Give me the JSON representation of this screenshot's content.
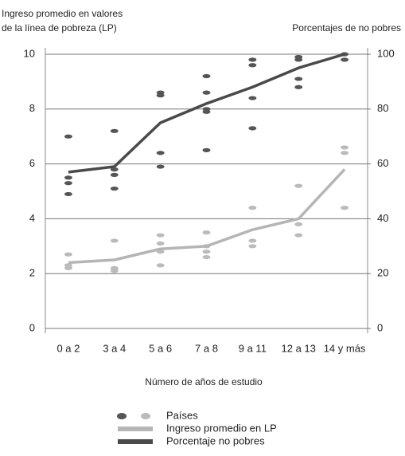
{
  "chart_data": {
    "type": "line",
    "ylabel": [
      "Ingreso promedio en valores",
      "de la línea de pobreza (LP)"
    ],
    "y2label": "Porcentajes de no pobres",
    "xlabel": "Número de años de estudio",
    "categories": [
      "0 a 2",
      "3 a 4",
      "5 a 6",
      "7 a 8",
      "9 a 11",
      "12 a 13",
      "14 y más"
    ],
    "ylim": [
      0,
      10
    ],
    "yticks": [
      0,
      2,
      4,
      6,
      8,
      10
    ],
    "y2lim": [
      0,
      100
    ],
    "y2ticks": [
      0,
      20,
      40,
      60,
      80,
      100
    ],
    "grid": true,
    "series": [
      {
        "name": "Países",
        "type": "scatter",
        "colors": [
          "#555555",
          "#bbbbbb"
        ],
        "groups": [
          {
            "axis": "y2",
            "x": [
              "0 a 2",
              "0 a 2",
              "0 a 2",
              "0 a 2",
              "3 a 4",
              "3 a 4",
              "3 a 4",
              "3 a 4",
              "5 a 6",
              "5 a 6",
              "5 a 6",
              "5 a 6",
              "7 a 8",
              "7 a 8",
              "7 a 8",
              "7 a 8",
              "7 a 8",
              "9 a 11",
              "9 a 11",
              "9 a 11",
              "9 a 11",
              "12 a 13",
              "12 a 13",
              "12 a 13",
              "12 a 13",
              "14 y más",
              "14 y más"
            ],
            "values": [
              70,
              55,
              53,
              49,
              72,
              58,
              56,
              51,
              86,
              85,
              64,
              59,
              92,
              86,
              80,
              79,
              65,
              98,
              96,
              84,
              73,
              99,
              98,
              91,
              88,
              100,
              98
            ]
          },
          {
            "axis": "y",
            "x": [
              "0 a 2",
              "0 a 2",
              "0 a 2",
              "3 a 4",
              "3 a 4",
              "3 a 4",
              "5 a 6",
              "5 a 6",
              "5 a 6",
              "5 a 6",
              "7 a 8",
              "7 a 8",
              "7 a 8",
              "7 a 8",
              "9 a 11",
              "9 a 11",
              "9 a 11",
              "12 a 13",
              "12 a 13",
              "12 a 13",
              "14 y más",
              "14 y más",
              "14 y más"
            ],
            "values": [
              2.7,
              2.3,
              2.2,
              3.2,
              2.2,
              2.1,
              3.4,
              3.1,
              2.8,
              2.3,
              3.5,
              3.0,
              2.8,
              2.6,
              4.4,
              3.2,
              3.0,
              5.2,
              3.8,
              3.4,
              6.6,
              6.4,
              4.4
            ]
          }
        ]
      },
      {
        "name": "Ingreso promedio en LP",
        "type": "line",
        "color": "#b5b5b5",
        "axis": "y",
        "values": [
          2.4,
          2.5,
          2.9,
          3.0,
          3.6,
          4.0,
          5.8
        ]
      },
      {
        "name": "Porcentaje no pobres",
        "type": "line",
        "color": "#4a4a4a",
        "axis": "y2",
        "values": [
          57,
          59,
          75,
          82,
          88,
          95,
          100
        ]
      }
    ]
  }
}
